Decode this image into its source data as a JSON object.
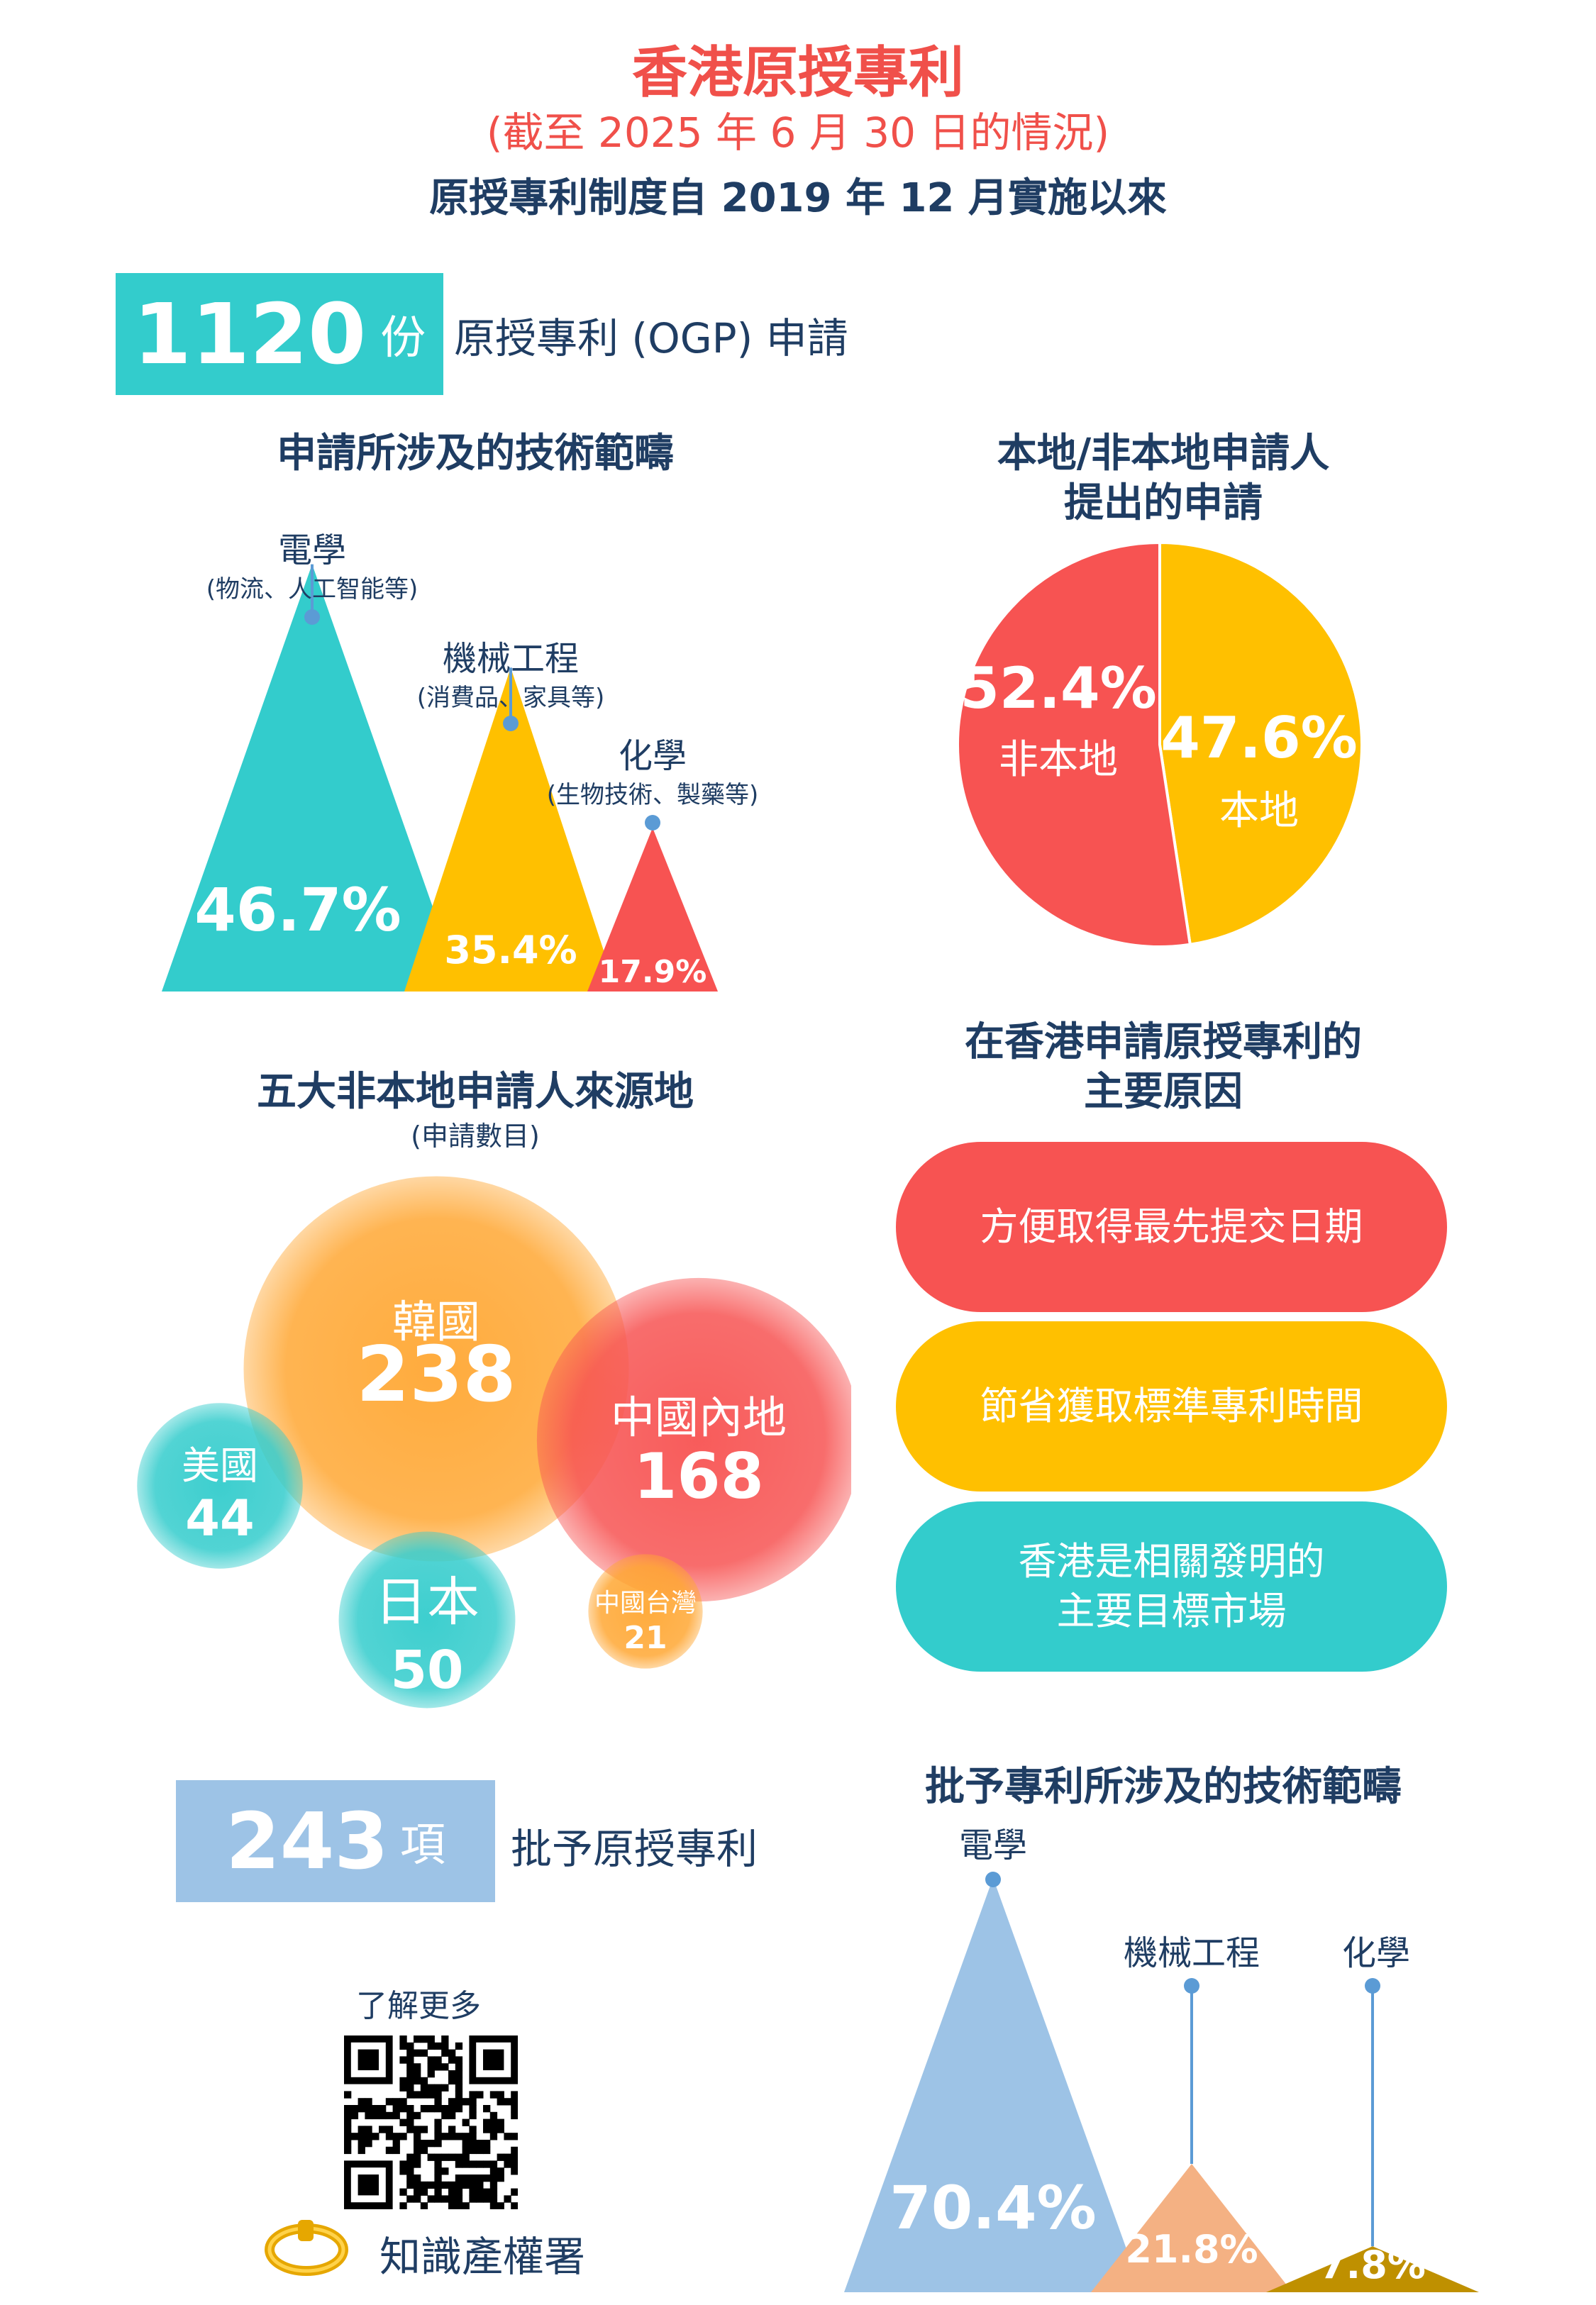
{
  "header": {
    "title": "香港原授專利",
    "subtitle": "(截至 2025 年 6 月 30 日的情況)",
    "intro": "原授專利制度自 2019 年 12 月實施以來"
  },
  "applications_stat": {
    "number": "1120",
    "unit": "份",
    "label": "原授專利 (OGP) 申請"
  },
  "grants_stat": {
    "number": "243",
    "unit": "項",
    "label": "批予原授專利"
  },
  "tech_fields_section": {
    "heading": "申請所涉及的技術範疇"
  },
  "applicant_section": {
    "heading_line1": "本地/非本地申請人",
    "heading_line2": "提出的申請"
  },
  "sources_section": {
    "heading": "五大非本地申請人來源地",
    "note": "(申請數目)"
  },
  "reasons_section": {
    "heading_line1": "在香港申請原授專利的",
    "heading_line2": "主要原因",
    "reasons": [
      {
        "line1": "方便取得最先提交日期",
        "line2": "",
        "color": "#f75352"
      },
      {
        "line1": "節省獲取標準專利時間",
        "line2": "",
        "color": "#ffc000"
      },
      {
        "line1": "香港是相關發明的",
        "line2": "主要目標市場",
        "color": "#33cccc"
      }
    ]
  },
  "granted_section": {
    "heading": "批予專利所涉及的技術範疇"
  },
  "footer": {
    "learn_more": "了解更多",
    "org_name": "知識產權署",
    "qr_icon": "qr-code-icon",
    "logo_icon": "ring-logo-icon"
  },
  "chart_data": [
    {
      "type": "bar",
      "title": "申請所涉及的技術範疇",
      "categories": [
        {
          "name": "電學",
          "note": "(物流、人工智能等)",
          "value": 46.7,
          "label": "46.7%",
          "color": "#33cccc"
        },
        {
          "name": "機械工程",
          "note": "(消費品、家具等)",
          "value": 35.4,
          "label": "35.4%",
          "color": "#ffc000"
        },
        {
          "name": "化學",
          "note": "(生物技術、製藥等)",
          "value": 17.9,
          "label": "17.9%",
          "color": "#f75352"
        }
      ]
    },
    {
      "type": "pie",
      "title": "本地/非本地申請人提出的申請",
      "slices": [
        {
          "name": "非本地",
          "value": 52.4,
          "label": "52.4%",
          "color": "#f75352"
        },
        {
          "name": "本地",
          "value": 47.6,
          "label": "47.6%",
          "color": "#ffc000"
        }
      ]
    },
    {
      "type": "bubble",
      "title": "五大非本地申請人來源地",
      "bubbles": [
        {
          "name": "韓國",
          "value": 238,
          "color": "#ffa733"
        },
        {
          "name": "中國內地",
          "value": 168,
          "color": "#f75352"
        },
        {
          "name": "日本",
          "value": 50,
          "color": "#33cccc"
        },
        {
          "name": "美國",
          "value": 44,
          "color": "#33cccc"
        },
        {
          "name": "中國台灣",
          "value": 21,
          "color": "#ffa733"
        }
      ]
    },
    {
      "type": "bar",
      "title": "批予專利所涉及的技術範疇",
      "categories": [
        {
          "name": "電學",
          "value": 70.4,
          "label": "70.4%",
          "color": "#9dc3e6"
        },
        {
          "name": "機械工程",
          "value": 21.8,
          "label": "21.8%",
          "color": "#f4b183"
        },
        {
          "name": "化學",
          "value": 7.8,
          "label": "7.8%",
          "color": "#bf9000"
        }
      ]
    }
  ]
}
